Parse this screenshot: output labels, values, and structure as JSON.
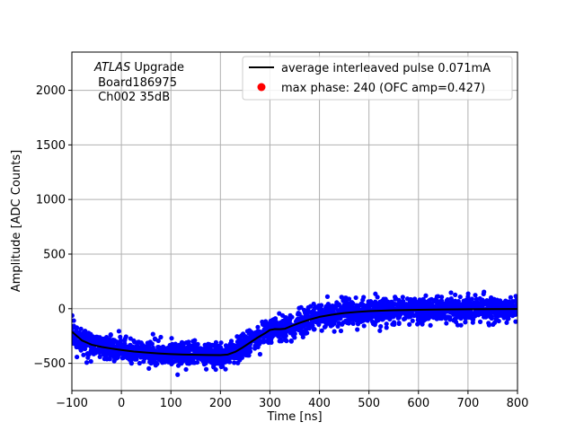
{
  "chart_data": {
    "type": "scatter",
    "xlabel": "Time [ns]",
    "ylabel": "Amplitude [ADC Counts]",
    "xlim": [
      -100,
      800
    ],
    "ylim": [
      -750,
      2350
    ],
    "xticks": [
      -100,
      0,
      100,
      200,
      300,
      400,
      500,
      600,
      700,
      800
    ],
    "yticks": [
      -500,
      0,
      500,
      1000,
      1500,
      2000
    ],
    "grid": true,
    "legend_position": "top-right",
    "annotation": {
      "italic": "ATLAS",
      "line1_rest": " Upgrade",
      "line2": " Board186975",
      "line3": " Ch002 35dB"
    },
    "series": [
      {
        "name": "average interleaved pulse 0.071mA",
        "kind": "line",
        "color": "#000000",
        "x": [
          -100,
          -80,
          -60,
          -40,
          -20,
          0,
          25,
          50,
          75,
          100,
          125,
          150,
          175,
          200,
          215,
          230,
          245,
          260,
          275,
          290,
          300,
          310,
          320,
          330,
          340,
          360,
          380,
          400,
          425,
          450,
          475,
          500,
          550,
          600,
          650,
          700,
          750,
          800
        ],
        "y": [
          -210,
          -290,
          -330,
          -350,
          -365,
          -378,
          -392,
          -402,
          -410,
          -416,
          -420,
          -422,
          -424,
          -425,
          -420,
          -395,
          -355,
          -310,
          -265,
          -225,
          -195,
          -187,
          -188,
          -184,
          -165,
          -130,
          -100,
          -75,
          -55,
          -40,
          -30,
          -22,
          -14,
          -10,
          -7,
          -5,
          -4,
          -3
        ]
      },
      {
        "name": "max phase: 240 (OFC amp=0.427)",
        "kind": "scatter",
        "color": "#0000ff",
        "noise": 55,
        "count": 2600,
        "x_range": [
          -100,
          800
        ]
      }
    ]
  },
  "colors": {
    "samples": "#0000ff",
    "average": "#000000",
    "max_phase_marker": "#ff0000",
    "grid": "#b0b0b0"
  }
}
